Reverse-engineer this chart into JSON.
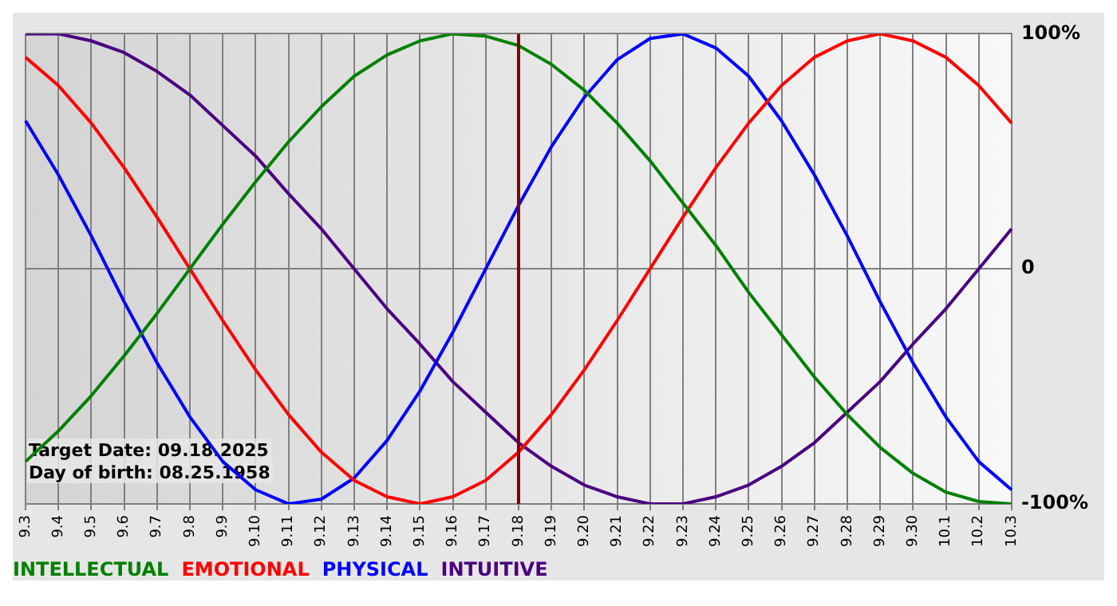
{
  "chart_data": {
    "type": "line",
    "categories": [
      "9.3",
      "9.4",
      "9.5",
      "9.6",
      "9.7",
      "9.8",
      "9.9",
      "9.10",
      "9.11",
      "9.12",
      "9.13",
      "9.14",
      "9.15",
      "9.16",
      "9.17",
      "9.18",
      "9.19",
      "9.20",
      "9.21",
      "9.22",
      "9.23",
      "9.24",
      "9.25",
      "9.26",
      "9.27",
      "9.28",
      "9.29",
      "9.30",
      "10.1",
      "10.2",
      "10.3"
    ],
    "series": [
      {
        "name": "INTELLECTUAL",
        "color": "#008000",
        "values": [
          -82,
          -69,
          -54,
          -37,
          -19,
          0,
          19,
          37,
          54,
          69,
          82,
          91,
          97,
          100,
          99,
          95,
          87,
          76,
          62,
          46,
          28,
          10,
          -10,
          -28,
          -46,
          -62,
          -76,
          -87,
          -95,
          -99,
          -100
        ]
      },
      {
        "name": "EMOTIONAL",
        "color": "#ff0000",
        "values": [
          90,
          78,
          62,
          43,
          22,
          0,
          -22,
          -43,
          -62,
          -78,
          -90,
          -97,
          -100,
          -97,
          -90,
          -78,
          -62,
          -43,
          -22,
          0,
          22,
          43,
          62,
          78,
          90,
          97,
          100,
          97,
          90,
          78,
          62
        ]
      },
      {
        "name": "PHYSICAL",
        "color": "#0000ff",
        "values": [
          63,
          40,
          14,
          -14,
          -40,
          -63,
          -82,
          -94,
          -100,
          -98,
          -89,
          -73,
          -52,
          -27,
          0,
          27,
          52,
          73,
          89,
          98,
          100,
          94,
          82,
          63,
          40,
          14,
          -14,
          -40,
          -63,
          -82,
          -94
        ]
      },
      {
        "name": "INTUITIVE",
        "color": "#4b0082",
        "values": [
          100,
          100,
          97,
          92,
          84,
          74,
          61,
          48,
          32,
          17,
          0,
          -17,
          -32,
          -48,
          -61,
          -74,
          -84,
          -92,
          -97,
          -100,
          -100,
          -97,
          -92,
          -84,
          -74,
          -61,
          -48,
          -32,
          -17,
          0,
          17
        ]
      }
    ],
    "ylim": [
      -100,
      100
    ],
    "yticks": [
      {
        "value": -100,
        "label": "-100%"
      },
      0,
      {
        "value": 100,
        "label": "100%"
      }
    ],
    "grid": true,
    "legend": "bottom left",
    "marker": "none",
    "line_style": "solid",
    "ref_lines": [
      {
        "axis": "x",
        "value": "9.18",
        "color": "#800000"
      }
    ],
    "annotations": [
      "Target Date: 09.18.2025",
      "Day of birth: 08.25.1958"
    ]
  }
}
